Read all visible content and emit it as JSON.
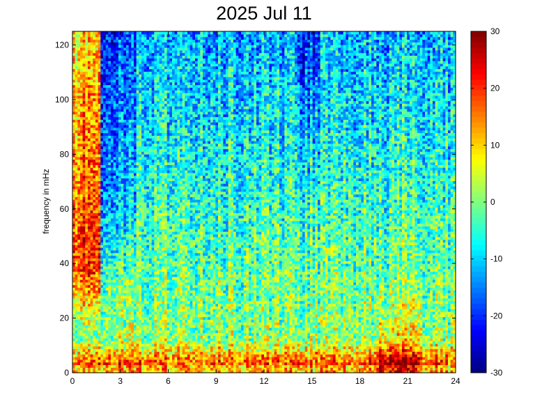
{
  "chart_data": {
    "type": "heatmap",
    "title": "2025 Jul 11",
    "xlabel": "",
    "ylabel": "frequency in mHz",
    "x_ticks": [
      "0",
      "3",
      "6",
      "9",
      "12",
      "15",
      "18",
      "21",
      "24"
    ],
    "x_tick_values": [
      0,
      3,
      6,
      9,
      12,
      15,
      18,
      21,
      24
    ],
    "y_ticks": [
      "0",
      "20",
      "40",
      "60",
      "80",
      "100",
      "120"
    ],
    "y_tick_values": [
      0,
      20,
      40,
      60,
      80,
      100,
      120
    ],
    "xlim": [
      0,
      24
    ],
    "ylim": [
      0,
      125
    ],
    "colormap": "jet",
    "colorbar": {
      "ticks": [
        "-30",
        "-20",
        "-10",
        "0",
        "10",
        "20",
        "30"
      ],
      "tick_values": [
        -30,
        -20,
        -10,
        0,
        10,
        20,
        30
      ],
      "range": [
        -30,
        30
      ]
    },
    "grid": false
  }
}
